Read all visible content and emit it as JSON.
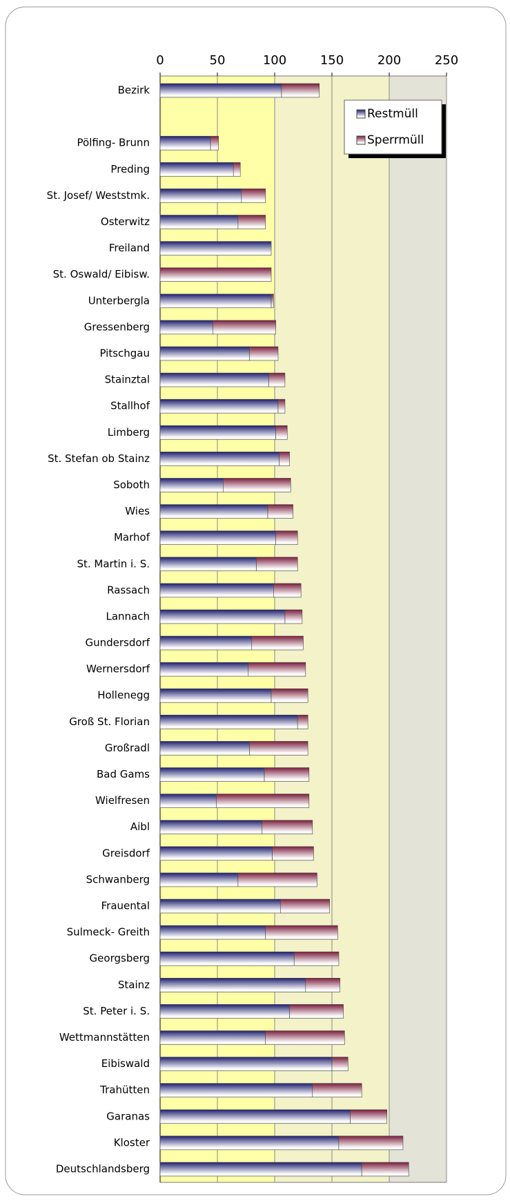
{
  "chart_data": {
    "type": "bar",
    "orientation": "horizontal",
    "stacked": true,
    "categories": [
      "Bezirk",
      null,
      "Pölfing- Brunn",
      "Preding",
      "St. Josef/ Weststmk.",
      "Osterwitz",
      "Freiland",
      "St. Oswald/ Eibisw.",
      "Unterbergla",
      "Gressenberg",
      "Pitschgau",
      "Stainztal",
      "Stallhof",
      "Limberg",
      "St. Stefan ob Stainz",
      "Soboth",
      "Wies",
      "Marhof",
      "St. Martin i. S.",
      "Rassach",
      "Lannach",
      "Gundersdorf",
      "Wernersdorf",
      "Hollenegg",
      "Groß St. Florian",
      "Großradl",
      "Bad Gams",
      "Wielfresen",
      "Aibl",
      "Greisdorf",
      "Schwanberg",
      "Frauental",
      "Sulmeck- Greith",
      "Georgsberg",
      "Stainz",
      "St. Peter i. S.",
      "Wettmannstätten",
      "Eibiswald",
      "Trahütten",
      "Garanas",
      "Kloster",
      "Deutschlandsberg"
    ],
    "series": [
      {
        "name": "Restmüll",
        "color": "#1f1f6e",
        "values": [
          106,
          null,
          44,
          64,
          71,
          68,
          97,
          0,
          97,
          46,
          78,
          95,
          103,
          101,
          104,
          55,
          94,
          101,
          84,
          99,
          109,
          80,
          77,
          97,
          120,
          78,
          91,
          49,
          89,
          98,
          68,
          105,
          92,
          117,
          127,
          113,
          92,
          150,
          133,
          166,
          156,
          176
        ]
      },
      {
        "name": "Sperrmüll",
        "color": "#7a1e3e",
        "values": [
          33,
          null,
          7,
          6,
          21,
          24,
          0,
          97,
          2,
          55,
          25,
          14,
          6,
          10,
          9,
          59,
          22,
          19,
          36,
          24,
          15,
          45,
          50,
          32,
          9,
          51,
          39,
          81,
          44,
          36,
          69,
          43,
          63,
          39,
          30,
          47,
          69,
          14,
          43,
          32,
          56,
          41
        ]
      }
    ],
    "xlim": [
      0,
      250
    ],
    "xticks": [
      0,
      50,
      100,
      150,
      200,
      250
    ],
    "grid": true,
    "legend": "upper right"
  }
}
